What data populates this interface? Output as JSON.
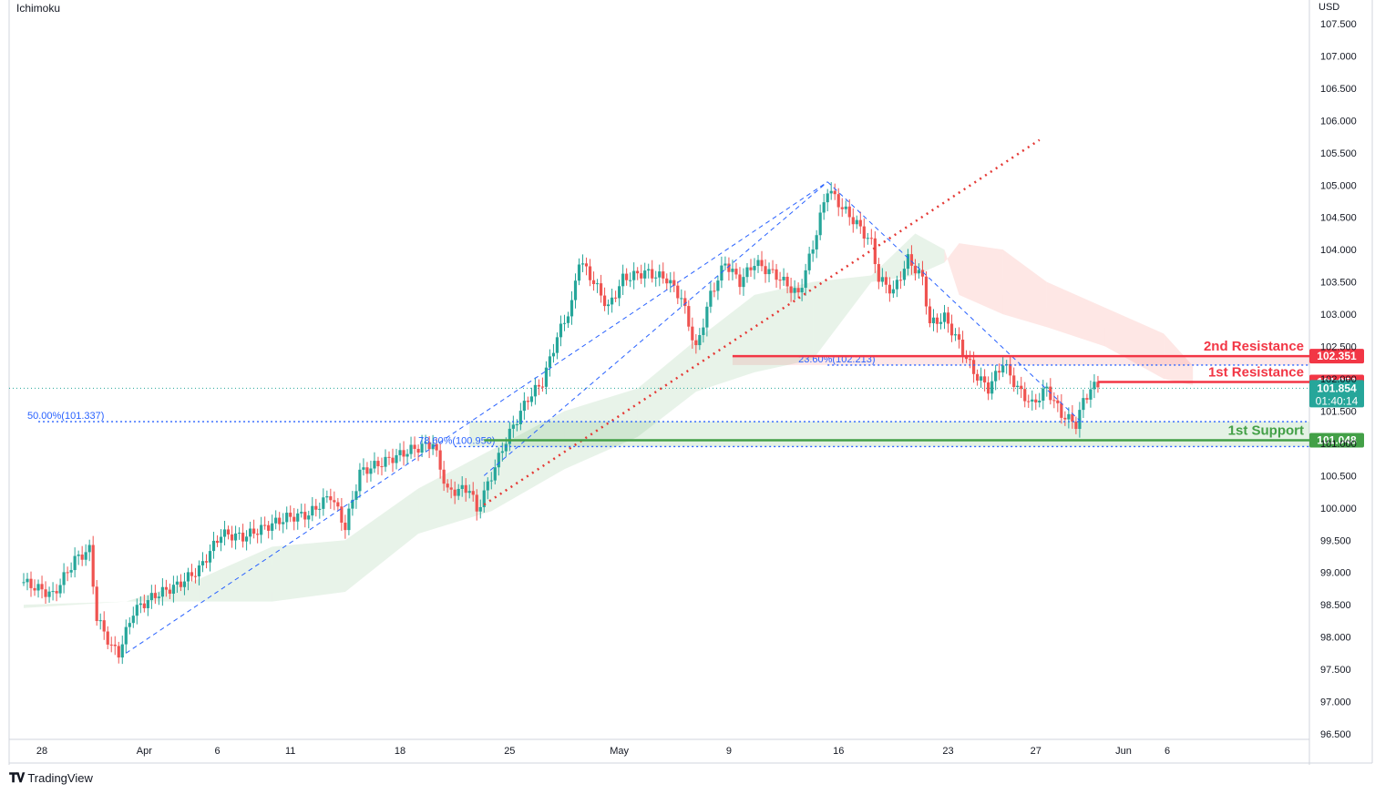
{
  "indicator": "Ichimoku",
  "brand": "TradingView",
  "chart_data": {
    "type": "candlestick",
    "currency": "USD",
    "ylim": [
      96.5,
      107.8
    ],
    "y_ticks": [
      "107.500",
      "107.000",
      "106.500",
      "106.000",
      "105.500",
      "105.000",
      "104.500",
      "104.000",
      "103.500",
      "103.000",
      "102.500",
      "102.000",
      "101.500",
      "101.000",
      "100.500",
      "100.000",
      "99.500",
      "99.000",
      "98.500",
      "98.000",
      "97.500",
      "97.000",
      "96.500"
    ],
    "y_tick_values": [
      107.5,
      107.0,
      106.5,
      106.0,
      105.5,
      105.0,
      104.5,
      104.0,
      103.5,
      103.0,
      102.5,
      102.0,
      101.5,
      101.0,
      100.5,
      100.0,
      99.5,
      99.0,
      98.5,
      98.0,
      97.5,
      97.0,
      96.5
    ],
    "x_ticks": [
      {
        "label": "28",
        "bar": 2
      },
      {
        "label": "Apr",
        "bar": 16
      },
      {
        "label": "6",
        "bar": 26
      },
      {
        "label": "11",
        "bar": 36
      },
      {
        "label": "18",
        "bar": 51
      },
      {
        "label": "25",
        "bar": 66
      },
      {
        "label": "May",
        "bar": 81
      },
      {
        "label": "9",
        "bar": 96
      },
      {
        "label": "16",
        "bar": 111
      },
      {
        "label": "23",
        "bar": 126
      },
      {
        "label": "27",
        "bar": 138
      },
      {
        "label": "Jun",
        "bar": 150
      },
      {
        "label": "6",
        "bar": 156
      }
    ],
    "bar_count": 165,
    "close_series": [
      [
        0,
        98.85
      ],
      [
        4,
        98.65
      ],
      [
        7,
        99.2
      ],
      [
        9,
        99.35
      ],
      [
        10,
        98.3
      ],
      [
        12,
        97.85
      ],
      [
        13,
        97.75
      ],
      [
        15,
        98.4
      ],
      [
        18,
        98.65
      ],
      [
        21,
        98.8
      ],
      [
        24,
        99.05
      ],
      [
        27,
        99.6
      ],
      [
        30,
        99.55
      ],
      [
        33,
        99.7
      ],
      [
        36,
        99.85
      ],
      [
        39,
        99.9
      ],
      [
        42,
        100.2
      ],
      [
        44,
        99.7
      ],
      [
        46,
        100.55
      ],
      [
        49,
        100.7
      ],
      [
        53,
        100.9
      ],
      [
        56,
        101.0
      ],
      [
        58,
        100.25
      ],
      [
        61,
        100.3
      ],
      [
        62,
        99.95
      ],
      [
        64,
        100.5
      ],
      [
        66,
        101.05
      ],
      [
        69,
        101.7
      ],
      [
        71,
        101.95
      ],
      [
        73,
        102.65
      ],
      [
        75,
        103.15
      ],
      [
        76,
        103.85
      ],
      [
        78,
        103.5
      ],
      [
        80,
        103.1
      ],
      [
        82,
        103.55
      ],
      [
        85,
        103.65
      ],
      [
        88,
        103.55
      ],
      [
        90,
        103.25
      ],
      [
        92,
        102.45
      ],
      [
        94,
        103.3
      ],
      [
        96,
        103.8
      ],
      [
        98,
        103.5
      ],
      [
        100,
        103.8
      ],
      [
        103,
        103.6
      ],
      [
        106,
        103.3
      ],
      [
        108,
        104.05
      ],
      [
        110,
        104.95
      ],
      [
        112,
        104.65
      ],
      [
        114,
        104.4
      ],
      [
        116,
        104.1
      ],
      [
        117,
        103.55
      ],
      [
        119,
        103.35
      ],
      [
        121,
        103.85
      ],
      [
        123,
        103.55
      ],
      [
        124,
        102.85
      ],
      [
        126,
        102.95
      ],
      [
        128,
        102.55
      ],
      [
        130,
        102.1
      ],
      [
        132,
        101.85
      ],
      [
        134,
        102.25
      ],
      [
        136,
        101.85
      ],
      [
        138,
        101.6
      ],
      [
        140,
        101.85
      ],
      [
        142,
        101.45
      ],
      [
        144,
        101.3
      ],
      [
        145,
        101.65
      ],
      [
        146,
        101.85
      ],
      [
        147,
        101.9
      ]
    ],
    "ichimoku_cloud": [
      {
        "bar": 0,
        "a": 98.5,
        "b": 98.45
      },
      {
        "bar": 14,
        "a": 98.55,
        "b": 98.55
      },
      {
        "bar": 24,
        "a": 98.9,
        "b": 98.55
      },
      {
        "bar": 34,
        "a": 99.4,
        "b": 98.55
      },
      {
        "bar": 44,
        "a": 99.5,
        "b": 98.7
      },
      {
        "bar": 54,
        "a": 100.3,
        "b": 99.6
      },
      {
        "bar": 64,
        "a": 100.9,
        "b": 99.95
      },
      {
        "bar": 74,
        "a": 101.5,
        "b": 100.6
      },
      {
        "bar": 84,
        "a": 101.85,
        "b": 101.1
      },
      {
        "bar": 92,
        "a": 102.6,
        "b": 101.8
      },
      {
        "bar": 100,
        "a": 103.3,
        "b": 102.1
      },
      {
        "bar": 108,
        "a": 103.5,
        "b": 102.3
      },
      {
        "bar": 116,
        "a": 103.6,
        "b": 103.5
      },
      {
        "bar": 122,
        "a": 104.25,
        "b": 103.6
      },
      {
        "bar": 126,
        "a": 104.0,
        "b": 103.8
      },
      {
        "bar": 128,
        "a": 103.3,
        "b": 104.1
      },
      {
        "bar": 134,
        "a": 103.0,
        "b": 104.0
      },
      {
        "bar": 140,
        "a": 102.8,
        "b": 103.5
      },
      {
        "bar": 148,
        "a": 102.5,
        "b": 103.1
      },
      {
        "bar": 156,
        "a": 102.0,
        "b": 102.7
      },
      {
        "bar": 160,
        "a": 101.9,
        "b": 102.2
      }
    ],
    "levels": [
      {
        "name": "2nd Resistance",
        "value": 102.351,
        "label": "102.351",
        "color": "#f23645"
      },
      {
        "name": "1st Resistance",
        "value": 101.95,
        "label": "101.950",
        "color": "#f23645"
      },
      {
        "name": "1st Support",
        "value": 101.048,
        "label": "101.048",
        "color": "#22ab94"
      }
    ],
    "fib_levels": [
      {
        "text": "23.60%(102.213)",
        "value": 102.213
      },
      {
        "text": "50.00%(101.337)",
        "value": 101.337
      },
      {
        "text": "78.60%(100.950)",
        "value": 100.95
      }
    ],
    "last_price": {
      "value": 101.854,
      "label": "101.854",
      "timer": "01:40:14",
      "color": "#26a69a"
    },
    "colors": {
      "up": "#26a69a",
      "down": "#ef5350",
      "resistance": "#f23645",
      "support": "#43a047",
      "fib": "#2962ff",
      "trendline": "#e53935"
    }
  }
}
